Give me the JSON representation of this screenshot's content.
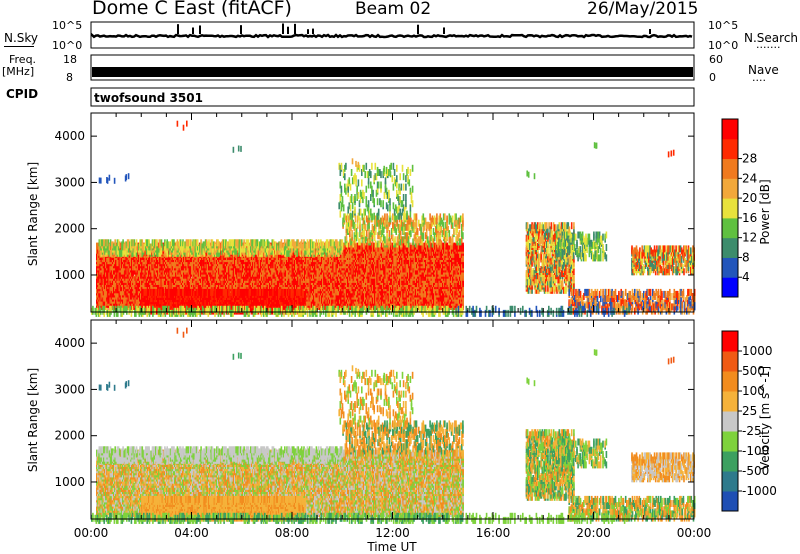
{
  "header": {
    "station": "Dome C East (fitACF)",
    "beam": "Beam 02",
    "date": "26/May/2015"
  },
  "status_panels": {
    "nsky_label": "N.Sky",
    "nsearch_label": "N.Search",
    "nsearch_dots": ".......",
    "nsky_ticks": [
      "10^5",
      "10^0"
    ],
    "nsearch_ticks": [
      "10^5",
      "10^0"
    ],
    "freq_label": "Freq.",
    "freq_unit": "[MHz]",
    "freq_ticks": [
      "18",
      "8"
    ],
    "nave_label": "Nave",
    "nave_dots": "....",
    "nave_ticks": [
      "60",
      "0"
    ],
    "cpid_label": "CPID",
    "cpid_value": "twofsound 3501"
  },
  "chart_data": [
    {
      "type": "heatmap",
      "name": "power",
      "ylabel": "Slant Range [km]",
      "xlabel": "",
      "xlim_hours": [
        0,
        24
      ],
      "ylim_km": [
        200,
        4500
      ],
      "x_ticks": [
        "00:00",
        "04:00",
        "08:00",
        "12:00",
        "16:00",
        "20:00",
        "00:00"
      ],
      "y_ticks": [
        "1000",
        "2000",
        "3000",
        "4000"
      ],
      "colorbar": {
        "label": "Power [dB]",
        "ticks": [
          "4",
          "8",
          "12",
          "16",
          "20",
          "24",
          "28"
        ],
        "colors": [
          "#0000ff",
          "#2255bb",
          "#3c8c6c",
          "#5fc040",
          "#e8e23c",
          "#f2a83a",
          "#f07a1e",
          "#ff2a00",
          "#ff0000"
        ]
      }
    },
    {
      "type": "heatmap",
      "name": "velocity",
      "ylabel": "Slant Range [km]",
      "xlabel": "Time UT",
      "xlim_hours": [
        0,
        24
      ],
      "ylim_km": [
        200,
        4500
      ],
      "x_ticks": [
        "00:00",
        "04:00",
        "08:00",
        "12:00",
        "16:00",
        "20:00",
        "00:00"
      ],
      "y_ticks": [
        "1000",
        "2000",
        "3000",
        "4000"
      ],
      "colorbar": {
        "label": "Velocity [m s^-1]",
        "ticks": [
          "1000",
          "500",
          "100",
          "25",
          "-25",
          "-100",
          "-500",
          "-1000"
        ],
        "colors": [
          "#1f4fb4",
          "#2e7a8c",
          "#3ca060",
          "#7ed23c",
          "#c8c8c8",
          "#f5b23a",
          "#f28c1e",
          "#f05a14",
          "#ff0000"
        ]
      }
    }
  ]
}
